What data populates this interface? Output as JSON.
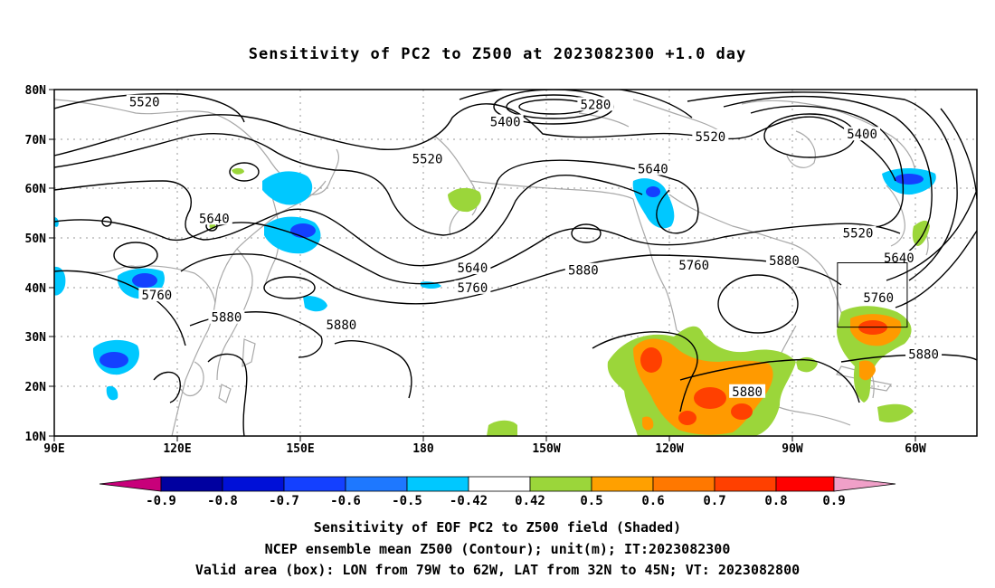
{
  "title": "Sensitivity of PC2 to Z500 at 2023082300 +1.0 day",
  "map": {
    "lat_ticks": [
      "80N",
      "70N",
      "60N",
      "50N",
      "40N",
      "30N",
      "20N",
      "10N"
    ],
    "lon_ticks": [
      "90E",
      "120E",
      "150E",
      "180",
      "150W",
      "120W",
      "90W",
      "60W"
    ],
    "contours": [
      {
        "label": "5520",
        "lat": 77.5,
        "lon": 112
      },
      {
        "label": "5280",
        "lat": 77.0,
        "lon": 222
      },
      {
        "label": "5400",
        "lat": 73.5,
        "lon": 200
      },
      {
        "label": "5520",
        "lat": 70.5,
        "lon": 250
      },
      {
        "label": "5400",
        "lat": 71.0,
        "lon": 287
      },
      {
        "label": "5520",
        "lat": 66.0,
        "lon": 181
      },
      {
        "label": "5640",
        "lat": 64.0,
        "lon": 236
      },
      {
        "label": "5640",
        "lat": 54.0,
        "lon": 129
      },
      {
        "label": "5520",
        "lat": 51.0,
        "lon": 286
      },
      {
        "label": "5640",
        "lat": 44.0,
        "lon": 192
      },
      {
        "label": "5880",
        "lat": 43.5,
        "lon": 219
      },
      {
        "label": "5760",
        "lat": 44.5,
        "lon": 246
      },
      {
        "label": "5880",
        "lat": 45.5,
        "lon": 268
      },
      {
        "label": "5640",
        "lat": 46.0,
        "lon": 296
      },
      {
        "label": "5760",
        "lat": 40.0,
        "lon": 192
      },
      {
        "label": "5760",
        "lat": 38.5,
        "lon": 115
      },
      {
        "label": "5880",
        "lat": 34.0,
        "lon": 132
      },
      {
        "label": "5880",
        "lat": 32.5,
        "lon": 160
      },
      {
        "label": "5760",
        "lat": 38.0,
        "lon": 291
      },
      {
        "label": "5880",
        "lat": 26.5,
        "lon": 302
      },
      {
        "label": "5880",
        "lat": 19.0,
        "lon": 259
      }
    ],
    "shading_positive_color": "#9bd63a",
    "shading_orange_color": "#ff9a00",
    "shading_red_color": "#ff3000",
    "shading_negative_color": "#1e90ff",
    "valid_box": {
      "lon_min": 281,
      "lon_max": 298,
      "lat_min": 32,
      "lat_max": 45
    }
  },
  "colorbar": {
    "labels": [
      "-0.9",
      "-0.8",
      "-0.7",
      "-0.6",
      "-0.5",
      "-0.42",
      "0.42",
      "0.5",
      "0.6",
      "0.7",
      "0.8",
      "0.9"
    ],
    "colors": [
      "#0000a0",
      "#0010d8",
      "#1440ff",
      "#1e78ff",
      "#00c8ff",
      "#ffffff",
      "#9bd63a",
      "#ffa000",
      "#ff7800",
      "#ff4000",
      "#ff0000"
    ],
    "low_extend_color": "#c8007a",
    "high_extend_color": "#f0a0c8"
  },
  "caption": {
    "line1": "Sensitivity of EOF PC2 to Z500 field (Shaded)",
    "line2": "NCEP ensemble mean Z500 (Contour); unit(m); IT:2023082300",
    "line3": "Valid area (box): LON from 79W to 62W, LAT from 32N to 45N; VT: 2023082800"
  }
}
